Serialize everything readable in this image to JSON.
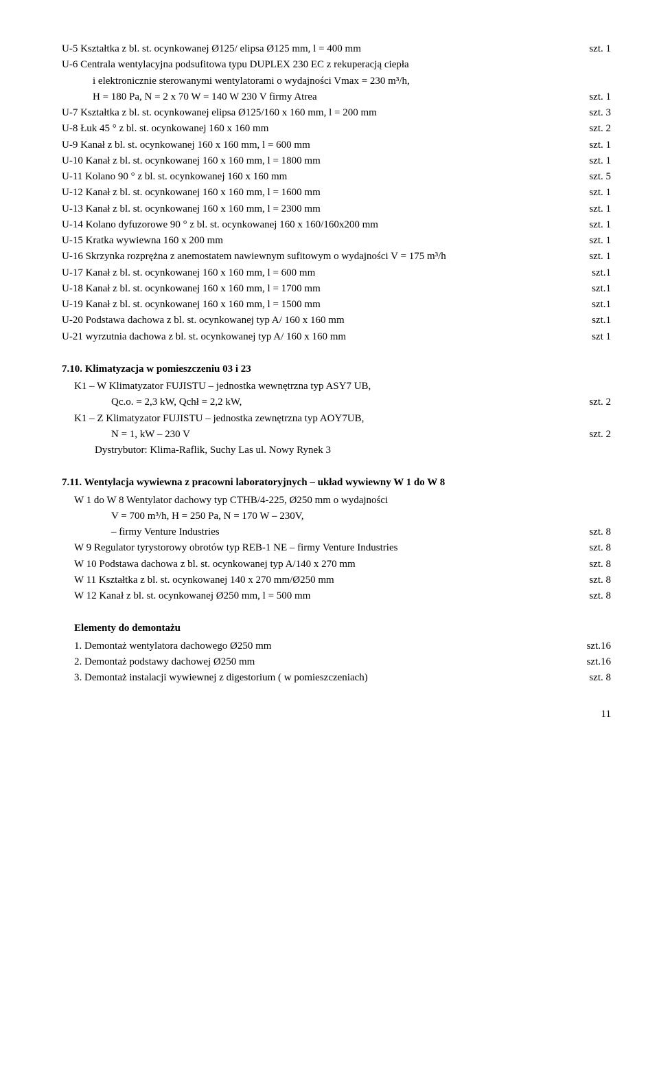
{
  "lines": [
    {
      "left": "U-5   Kształtka z bl. st. ocynkowanej Ø125/ elipsa Ø125 mm, l = 400 mm",
      "right": "szt. 1"
    },
    {
      "left": "U-6   Centrala wentylacyjna podsufitowa typu DUPLEX 230 EC z rekuperacją ciepła",
      "right": ""
    },
    {
      "left": "i elektronicznie sterowanymi wentylatorami o wydajności Vmax = 230 m³/h,",
      "right": "",
      "cls": "indent1"
    },
    {
      "left": "H = 180 Pa, N = 2 x 70 W = 140 W 230 V firmy Atrea",
      "right": "szt. 1",
      "cls": "indent1"
    },
    {
      "left": "U-7   Kształtka z bl. st. ocynkowanej elipsa Ø125/160 x 160  mm, l = 200 mm",
      "right": "szt. 3"
    },
    {
      "left": "U-8   Łuk 45 °  z bl.  st. ocynkowanej 160 x 160 mm",
      "right": "szt. 2"
    },
    {
      "left": "U-9   Kanał  z bl.  st. ocynkowanej 160 x 160 mm,  l = 600 mm",
      "right": "szt. 1"
    },
    {
      "left": "U-10 Kanał  z bl.  st. ocynkowanej 160 x 160 mm,  l = 1800 mm",
      "right": "szt. 1"
    },
    {
      "left": "U-11 Kolano 90 °  z bl.  st. ocynkowanej 160 x 160 mm",
      "right": "szt. 5"
    },
    {
      "left": "U-12 Kanał  z bl.  st. ocynkowanej 160 x 160 mm,  l = 1600 mm",
      "right": "szt. 1"
    },
    {
      "left": "U-13 Kanał  z bl.  st. ocynkowanej 160 x 160 mm,  l = 2300 mm",
      "right": "szt. 1"
    },
    {
      "left": "U-14 Kolano dyfuzorowe 90 °  z bl.  st. ocynkowanej 160 x 160/160x200 mm",
      "right": "szt. 1"
    },
    {
      "left": "U-15 Kratka wywiewna 160 x 200 mm",
      "right": "szt. 1"
    },
    {
      "left": "U-16 Skrzynka rozprężna z anemostatem nawiewnym sufitowym o wydajności V = 175 m³/h",
      "right": "szt. 1"
    },
    {
      "left": "U-17 Kanał  z bl.  st. ocynkowanej 160 x 160 mm,  l = 600 mm",
      "right": "szt.1"
    },
    {
      "left": "U-18 Kanał  z bl.  st. ocynkowanej 160 x 160 mm,  l = 1700 mm",
      "right": "szt.1"
    },
    {
      "left": "U-19 Kanał  z bl.  st. ocynkowanej 160 x 160 mm,  l = 1500 mm",
      "right": "szt.1"
    },
    {
      "left": "U-20 Podstawa dachowa z bl. st. ocynkowanej  typ A/ 160 x 160 mm",
      "right": "szt.1"
    },
    {
      "left": "U-21 wyrzutnia dachowa z bl. st. ocynkowanej  typ A/ 160 x 160 mm",
      "right": "szt 1"
    }
  ],
  "section710": {
    "title": "7.10. Klimatyzacja w pomieszczeniu 03 i 23",
    "rows": [
      {
        "left": "K1 – W   Klimatyzator FUJISTU – jednostka wewnętrzna typ ASY7 UB,",
        "right": "",
        "cls": "sub-indent"
      },
      {
        "left": "Qc.o. = 2,3 kW,  Qchł = 2,2 kW,",
        "right": "szt. 2",
        "cls": "sub-indent3"
      },
      {
        "left": "K1 – Z   Klimatyzator FUJISTU – jednostka zewnętrzna typ AOY7UB,",
        "right": "",
        "cls": "sub-indent"
      },
      {
        "left": "N = 1, kW – 230 V",
        "right": "szt. 2",
        "cls": "sub-indent3"
      },
      {
        "left": "Dystrybutor: Klima-Raflik, Suchy Las ul. Nowy Rynek 3",
        "right": "",
        "cls": "sub-indent2"
      }
    ]
  },
  "section711": {
    "title": "7.11. Wentylacja wywiewna  z pracowni laboratoryjnych – układ wywiewny W 1 do W 8",
    "rows": [
      {
        "left": "W 1   do  W 8   Wentylator dachowy typ CTHB/4-225,  Ø250 mm  o wydajności",
        "right": "",
        "cls": "sub-indent"
      },
      {
        "left": "V = 700 m³/h, H = 250 Pa,   N = 170 W – 230V,",
        "right": "",
        "cls": "sub-indent3"
      },
      {
        "left": "– firmy Venture Industries",
        "right": "szt. 8",
        "cls": "sub-indent3"
      },
      {
        "left": "W 9    Regulator tyrystorowy obrotów  typ REB-1 NE   –  firmy Venture Industries",
        "right": "szt. 8",
        "cls": "sub-indent"
      },
      {
        "left": "W 10  Podstawa dachowa z bl. st. ocynkowanej  typ A/140 x 270 mm",
        "right": "szt. 8",
        "cls": "sub-indent"
      },
      {
        "left": "W 11  Kształtka z bl.  st. ocynkowanej 140 x 270 mm/Ø250 mm",
        "right": "szt. 8",
        "cls": "sub-indent"
      },
      {
        "left": "W 12  Kanał z bl. st. ocynkowanej  Ø250 mm, l = 500 mm",
        "right": "szt. 8",
        "cls": "sub-indent"
      }
    ]
  },
  "elements": {
    "title": "Elementy do demontażu",
    "rows": [
      {
        "left": "1. Demontaż wentylatora dachowego  Ø250  mm",
        "right": "szt.16",
        "cls": "sub-indent"
      },
      {
        "left": "2. Demontaż podstawy dachowej  Ø250  mm",
        "right": "szt.16",
        "cls": "sub-indent"
      },
      {
        "left": "3. Demontaż instalacji wywiewnej z digestorium ( w pomieszczeniach)",
        "right": "szt. 8",
        "cls": "sub-indent"
      }
    ]
  },
  "pagenum": "11"
}
